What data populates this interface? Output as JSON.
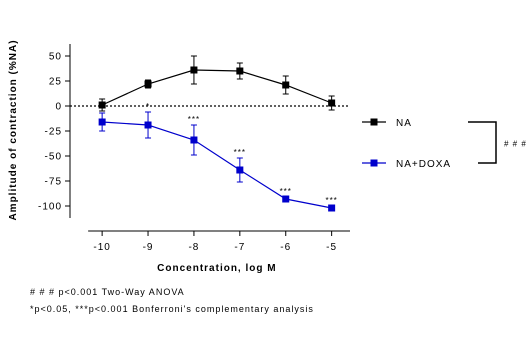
{
  "chart_data": {
    "type": "line",
    "title": "",
    "xlabel": "Concentration, log M",
    "ylabel": "Amplitude of contraction (%NA)",
    "x": [
      -10,
      -9,
      -8,
      -7,
      -6,
      -5
    ],
    "xlim": [
      -10.7,
      -4.6
    ],
    "ylim": [
      -112,
      62
    ],
    "x_tick_labels": [
      "-10",
      "-9",
      "-8",
      "-7",
      "-6",
      "-5"
    ],
    "y_ticks": [
      50,
      25,
      0,
      -25,
      -50,
      -75,
      -100
    ],
    "y_tick_labels": [
      "50",
      "25",
      "0",
      "-25",
      "-50",
      "-75",
      "-100"
    ],
    "zero_line": "dotted",
    "grid": false,
    "legend_position": "right",
    "series": [
      {
        "name": "NA",
        "color": "#000000",
        "marker": "square",
        "values": [
          1,
          22,
          36,
          35,
          21,
          3
        ],
        "error": [
          6,
          4,
          14,
          8,
          9,
          7
        ],
        "significance": [
          "",
          "",
          "",
          "",
          "",
          ""
        ]
      },
      {
        "name": "NA+DOXA",
        "color": "#0000cc",
        "marker": "square",
        "values": [
          -16,
          -19,
          -34,
          -64,
          -93,
          -102
        ],
        "error": [
          9,
          13,
          15,
          12,
          2,
          2
        ],
        "significance": [
          "",
          "*",
          "***",
          "***",
          "***",
          "***"
        ]
      }
    ],
    "annotations": {
      "bracket_label": "# # #"
    }
  },
  "footnotes": {
    "line1": "# # # p<0.001 Two-Way ANOVA",
    "line2": "*p<0.05, ***p<0.001 Bonferroni's complementary analysis"
  }
}
